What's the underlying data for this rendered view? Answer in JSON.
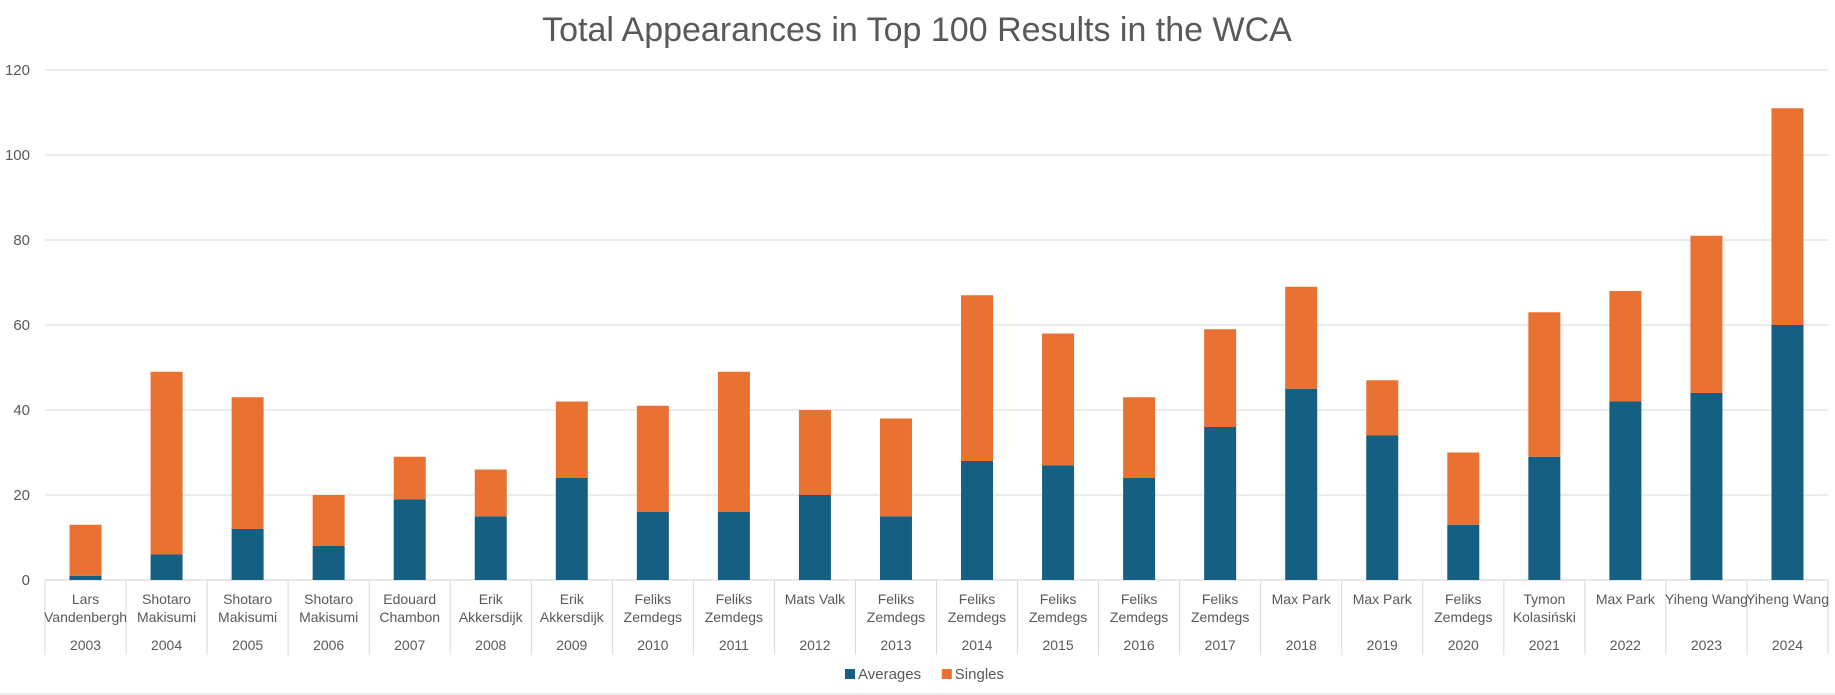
{
  "chart_data": {
    "type": "bar",
    "stacked": true,
    "title": "Total Appearances in Top 100 Results in the WCA",
    "xlabel": "",
    "ylabel": "",
    "ylim": [
      0,
      120
    ],
    "yticks": [
      0,
      20,
      40,
      60,
      80,
      100,
      120
    ],
    "grid": true,
    "legend_position": "bottom",
    "categories": [
      {
        "name": [
          "Lars",
          "Vandenbergh"
        ],
        "year": "2003"
      },
      {
        "name": [
          "Shotaro",
          "Makisumi"
        ],
        "year": "2004"
      },
      {
        "name": [
          "Shotaro",
          "Makisumi"
        ],
        "year": "2005"
      },
      {
        "name": [
          "Shotaro",
          "Makisumi"
        ],
        "year": "2006"
      },
      {
        "name": [
          "Edouard",
          "Chambon"
        ],
        "year": "2007"
      },
      {
        "name": [
          "Erik",
          "Akkersdijk"
        ],
        "year": "2008"
      },
      {
        "name": [
          "Erik",
          "Akkersdijk"
        ],
        "year": "2009"
      },
      {
        "name": [
          "Feliks",
          "Zemdegs"
        ],
        "year": "2010"
      },
      {
        "name": [
          "Feliks",
          "Zemdegs"
        ],
        "year": "2011"
      },
      {
        "name": [
          "Mats Valk"
        ],
        "year": "2012"
      },
      {
        "name": [
          "Feliks",
          "Zemdegs"
        ],
        "year": "2013"
      },
      {
        "name": [
          "Feliks",
          "Zemdegs"
        ],
        "year": "2014"
      },
      {
        "name": [
          "Feliks",
          "Zemdegs"
        ],
        "year": "2015"
      },
      {
        "name": [
          "Feliks",
          "Zemdegs"
        ],
        "year": "2016"
      },
      {
        "name": [
          "Feliks",
          "Zemdegs"
        ],
        "year": "2017"
      },
      {
        "name": [
          "Max Park"
        ],
        "year": "2018"
      },
      {
        "name": [
          "Max Park"
        ],
        "year": "2019"
      },
      {
        "name": [
          "Feliks",
          "Zemdegs"
        ],
        "year": "2020"
      },
      {
        "name": [
          "Tymon",
          "Kolasiński"
        ],
        "year": "2021"
      },
      {
        "name": [
          "Max Park"
        ],
        "year": "2022"
      },
      {
        "name": [
          "Yiheng Wang"
        ],
        "year": "2023"
      },
      {
        "name": [
          "Yiheng Wang"
        ],
        "year": "2024"
      }
    ],
    "series": [
      {
        "name": "Averages",
        "color": "#156082",
        "values": [
          1,
          6,
          12,
          8,
          19,
          15,
          24,
          16,
          16,
          20,
          15,
          28,
          27,
          24,
          36,
          45,
          34,
          13,
          29,
          42,
          44,
          60
        ]
      },
      {
        "name": "Singles",
        "color": "#E97132",
        "values": [
          12,
          43,
          31,
          12,
          10,
          11,
          18,
          25,
          33,
          20,
          23,
          39,
          31,
          19,
          23,
          24,
          13,
          17,
          34,
          26,
          37,
          51
        ]
      }
    ]
  }
}
